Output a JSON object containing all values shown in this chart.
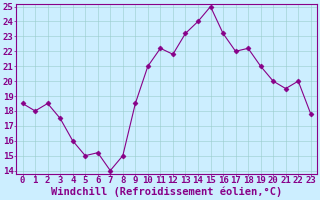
{
  "x": [
    0,
    1,
    2,
    3,
    4,
    5,
    6,
    7,
    8,
    9,
    10,
    11,
    12,
    13,
    14,
    15,
    16,
    17,
    18,
    19,
    20,
    21,
    22,
    23
  ],
  "y": [
    18.5,
    18.0,
    18.5,
    17.5,
    16.0,
    15.0,
    15.2,
    14.0,
    15.0,
    18.5,
    21.0,
    22.2,
    21.8,
    23.2,
    24.0,
    25.0,
    23.2,
    22.0,
    22.2,
    21.0,
    20.0,
    19.5,
    20.0,
    17.8
  ],
  "line_color": "#880088",
  "marker": "D",
  "marker_size": 2.5,
  "bg_color": "#cceeff",
  "grid_color": "#99cccc",
  "xlabel": "Windchill (Refroidissement éolien,°C)",
  "ylim": [
    14,
    25
  ],
  "xlim": [
    -0.5,
    23.5
  ],
  "yticks": [
    14,
    15,
    16,
    17,
    18,
    19,
    20,
    21,
    22,
    23,
    24,
    25
  ],
  "xticks": [
    0,
    1,
    2,
    3,
    4,
    5,
    6,
    7,
    8,
    9,
    10,
    11,
    12,
    13,
    14,
    15,
    16,
    17,
    18,
    19,
    20,
    21,
    22,
    23
  ],
  "label_color": "#880088",
  "tick_color": "#880088",
  "font_size": 6.5,
  "xlabel_fontsize": 7.5,
  "linewidth": 0.8,
  "border_color": "#880088"
}
